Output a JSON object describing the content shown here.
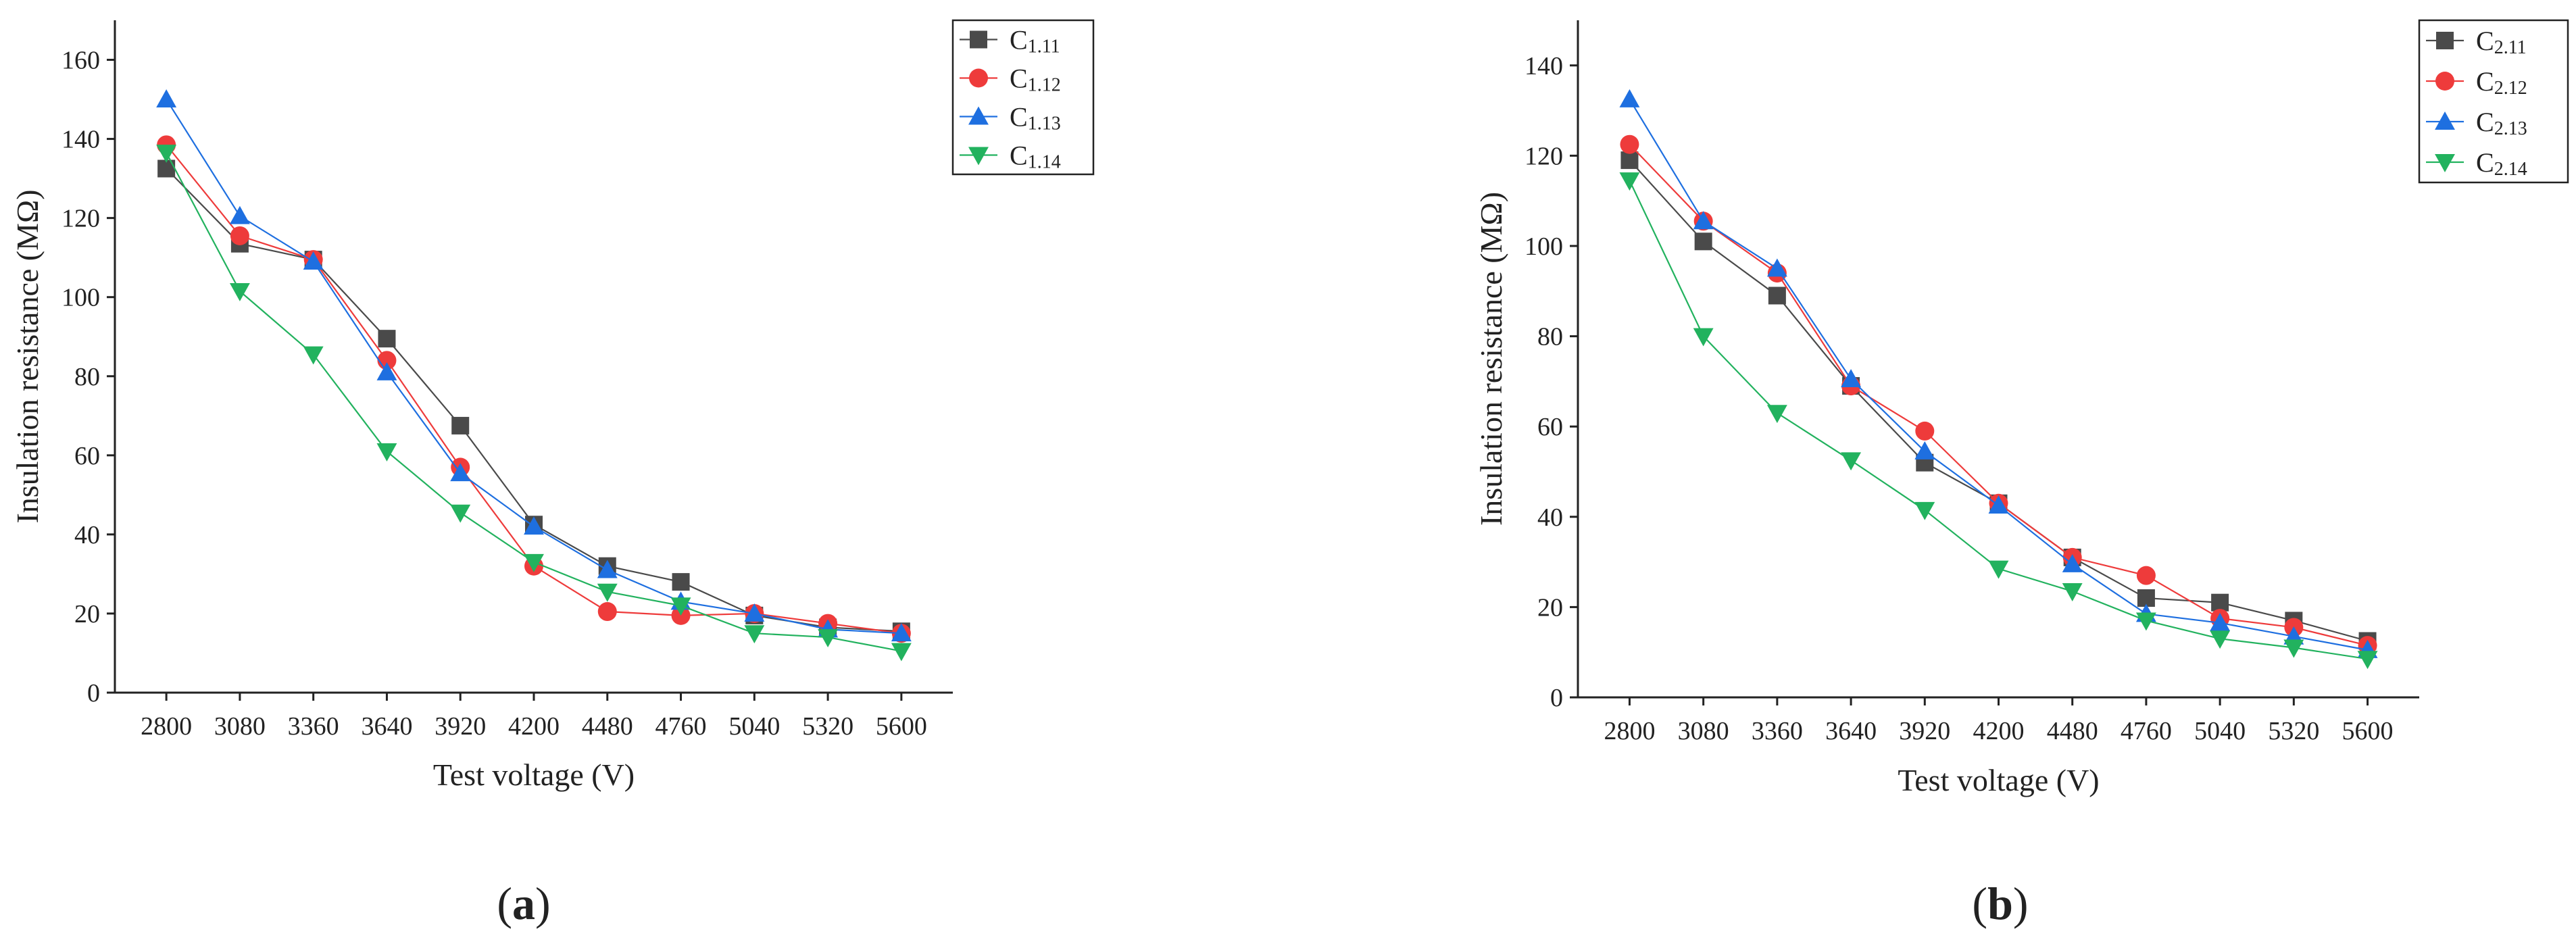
{
  "chart_data": [
    {
      "type": "line",
      "panel_label": "a",
      "xlabel": "Test voltage (V)",
      "ylabel": "Insulation resistance (MΩ)",
      "ylim": [
        0,
        170
      ],
      "yticks": [
        0,
        20,
        40,
        60,
        80,
        100,
        120,
        140,
        160
      ],
      "categories": [
        "2800",
        "3080",
        "3360",
        "3640",
        "3920",
        "4200",
        "4480",
        "4760",
        "5040",
        "5320",
        "5600"
      ],
      "legend_position": "top-right",
      "series": [
        {
          "name": "C1.11",
          "label_main": "C",
          "label_sub": "1.11",
          "color": "#4a4a4a",
          "marker": "square",
          "values": [
            132.5,
            113.5,
            109.5,
            89.5,
            67.5,
            42.5,
            32,
            28,
            19.5,
            16.5,
            15.5
          ]
        },
        {
          "name": "C1.12",
          "label_main": "C",
          "label_sub": "1.12",
          "color": "#ee3b3b",
          "marker": "circle",
          "values": [
            138.5,
            115.5,
            109.5,
            84,
            57,
            32,
            20.5,
            19.5,
            20,
            17.5,
            15
          ]
        },
        {
          "name": "C1.13",
          "label_main": "C",
          "label_sub": "1.13",
          "color": "#1e6fe0",
          "marker": "triangle-up",
          "values": [
            150,
            120.5,
            109,
            81,
            55.5,
            42,
            31,
            23,
            20,
            16,
            15
          ]
        },
        {
          "name": "C1.14",
          "label_main": "C",
          "label_sub": "1.14",
          "color": "#22b25e",
          "marker": "triangle-down",
          "values": [
            136.5,
            101.5,
            85.5,
            61,
            45.5,
            33,
            25.5,
            22,
            15,
            14,
            10.5
          ]
        }
      ]
    },
    {
      "type": "line",
      "panel_label": "b",
      "xlabel": "Test voltage (V)",
      "ylabel": "Insulation resistance (MΩ)",
      "ylim": [
        0,
        150
      ],
      "yticks": [
        0,
        20,
        40,
        60,
        80,
        100,
        120,
        140
      ],
      "categories": [
        "2800",
        "3080",
        "3360",
        "3640",
        "3920",
        "4200",
        "4480",
        "4760",
        "5040",
        "5320",
        "5600"
      ],
      "legend_position": "top-right",
      "series": [
        {
          "name": "C2.11",
          "label_main": "C",
          "label_sub": "2.11",
          "color": "#4a4a4a",
          "marker": "square",
          "values": [
            119,
            101,
            89,
            69,
            52,
            43,
            31,
            22,
            21,
            17,
            12.5
          ]
        },
        {
          "name": "C2.12",
          "label_main": "C",
          "label_sub": "2.12",
          "color": "#ee3b3b",
          "marker": "circle",
          "values": [
            122.5,
            105.5,
            94,
            69,
            59,
            43,
            31,
            27,
            17.5,
            15.5,
            11.5
          ]
        },
        {
          "name": "C2.13",
          "label_main": "C",
          "label_sub": "2.13",
          "color": "#1e6fe0",
          "marker": "triangle-up",
          "values": [
            132.5,
            105.5,
            95,
            70.5,
            54.5,
            42.5,
            29.5,
            18.5,
            16.5,
            13.5,
            10.5
          ]
        },
        {
          "name": "C2.14",
          "label_main": "C",
          "label_sub": "2.14",
          "color": "#22b25e",
          "marker": "triangle-down",
          "values": [
            114.5,
            80,
            63,
            52.5,
            41.5,
            28.5,
            23.5,
            17,
            13,
            11,
            8.5
          ]
        }
      ]
    }
  ]
}
